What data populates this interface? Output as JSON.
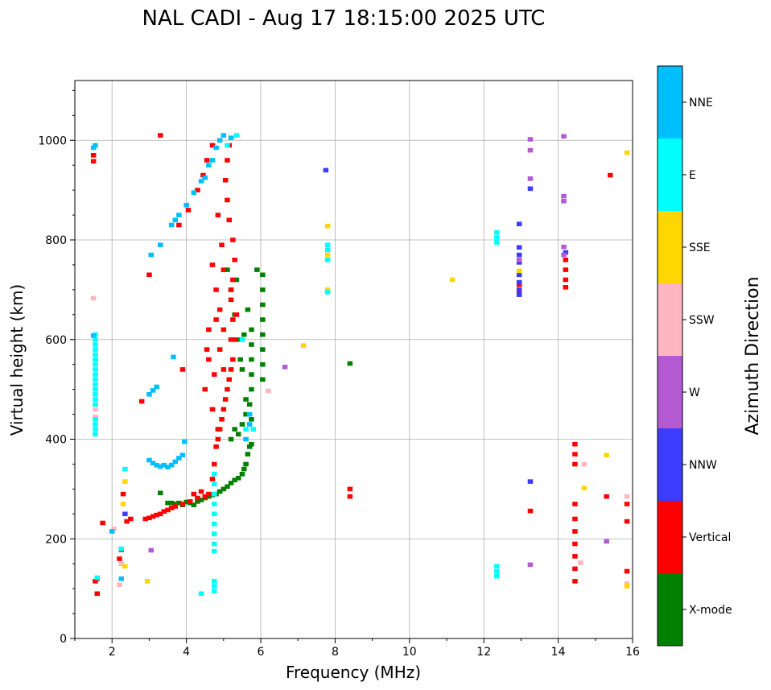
{
  "chart_data": {
    "type": "scatter",
    "title": "NAL CADI - Aug 17 18:15:00 2025 UTC",
    "xlabel": "Frequency (MHz)",
    "ylabel": "Virtual height (km)",
    "xlim": [
      1,
      16
    ],
    "ylim": [
      0,
      1120
    ],
    "xticks": [
      2,
      4,
      6,
      8,
      10,
      12,
      14,
      16
    ],
    "yticks": [
      0,
      200,
      400,
      600,
      800,
      1000
    ],
    "grid": true,
    "colorbar": {
      "label": "Azimuth Direction",
      "categories": [
        {
          "name": "X-mode",
          "color": "#008000"
        },
        {
          "name": "Vertical",
          "color": "#ff0000"
        },
        {
          "name": "NNW",
          "color": "#3c3cff"
        },
        {
          "name": "W",
          "color": "#b45ad2"
        },
        {
          "name": "SSW",
          "color": "#ffb6c1"
        },
        {
          "name": "SSE",
          "color": "#ffd700"
        },
        {
          "name": "E",
          "color": "#00ffff"
        },
        {
          "name": "NNE",
          "color": "#00bfff"
        }
      ]
    },
    "series": [
      {
        "name": "X-mode",
        "points": [
          [
            3.5,
            272
          ],
          [
            3.6,
            272
          ],
          [
            3.7,
            270
          ],
          [
            3.8,
            272
          ],
          [
            3.9,
            268
          ],
          [
            4.0,
            274
          ],
          [
            4.1,
            272
          ],
          [
            4.2,
            268
          ],
          [
            4.3,
            275
          ],
          [
            4.4,
            278
          ],
          [
            4.5,
            282
          ],
          [
            4.6,
            285
          ],
          [
            4.7,
            288
          ],
          [
            4.8,
            290
          ],
          [
            4.9,
            295
          ],
          [
            5.0,
            300
          ],
          [
            5.1,
            305
          ],
          [
            5.2,
            312
          ],
          [
            5.3,
            318
          ],
          [
            5.4,
            322
          ],
          [
            5.5,
            330
          ],
          [
            5.6,
            350
          ],
          [
            5.65,
            370
          ],
          [
            5.7,
            385
          ],
          [
            5.75,
            390
          ],
          [
            5.55,
            340
          ],
          [
            5.2,
            400
          ],
          [
            5.3,
            420
          ],
          [
            5.4,
            410
          ],
          [
            5.5,
            430
          ],
          [
            5.6,
            450
          ],
          [
            5.7,
            470
          ],
          [
            5.75,
            440
          ],
          [
            5.75,
            500
          ],
          [
            5.75,
            530
          ],
          [
            5.75,
            560
          ],
          [
            5.75,
            590
          ],
          [
            5.75,
            620
          ],
          [
            5.6,
            480
          ],
          [
            5.5,
            540
          ],
          [
            5.4,
            600
          ],
          [
            5.3,
            650
          ],
          [
            5.2,
            700
          ],
          [
            5.1,
            740
          ],
          [
            6.05,
            730
          ],
          [
            6.05,
            700
          ],
          [
            6.05,
            670
          ],
          [
            6.05,
            640
          ],
          [
            6.05,
            610
          ],
          [
            6.05,
            580
          ],
          [
            6.05,
            550
          ],
          [
            6.05,
            520
          ],
          [
            8.4,
            552
          ],
          [
            3.3,
            292
          ],
          [
            5.45,
            560
          ],
          [
            5.55,
            610
          ],
          [
            5.65,
            660
          ],
          [
            5.35,
            720
          ],
          [
            5.9,
            740
          ]
        ]
      },
      {
        "name": "Vertical",
        "points": [
          [
            2.9,
            240
          ],
          [
            3.0,
            242
          ],
          [
            3.1,
            245
          ],
          [
            3.2,
            248
          ],
          [
            3.3,
            250
          ],
          [
            3.4,
            255
          ],
          [
            3.5,
            258
          ],
          [
            3.6,
            262
          ],
          [
            3.9,
            270
          ],
          [
            4.1,
            275
          ],
          [
            4.3,
            282
          ],
          [
            4.5,
            285
          ],
          [
            4.6,
            290
          ],
          [
            4.7,
            320
          ],
          [
            4.75,
            350
          ],
          [
            4.8,
            385
          ],
          [
            4.85,
            400
          ],
          [
            4.9,
            420
          ],
          [
            4.95,
            440
          ],
          [
            5.0,
            460
          ],
          [
            5.05,
            480
          ],
          [
            5.1,
            500
          ],
          [
            5.15,
            520
          ],
          [
            5.2,
            540
          ],
          [
            5.25,
            560
          ],
          [
            5.2,
            600
          ],
          [
            5.25,
            640
          ],
          [
            5.2,
            680
          ],
          [
            5.25,
            720
          ],
          [
            5.3,
            760
          ],
          [
            5.25,
            800
          ],
          [
            5.15,
            840
          ],
          [
            5.1,
            880
          ],
          [
            5.05,
            920
          ],
          [
            5.1,
            960
          ],
          [
            5.15,
            990
          ],
          [
            4.8,
            640
          ],
          [
            4.6,
            620
          ],
          [
            4.55,
            580
          ],
          [
            4.6,
            560
          ],
          [
            4.75,
            530
          ],
          [
            4.5,
            500
          ],
          [
            4.7,
            460
          ],
          [
            4.85,
            420
          ],
          [
            4.3,
            900
          ],
          [
            4.45,
            930
          ],
          [
            4.55,
            960
          ],
          [
            4.7,
            990
          ],
          [
            4.05,
            860
          ],
          [
            3.8,
            830
          ],
          [
            4.7,
            750
          ],
          [
            4.8,
            700
          ],
          [
            4.9,
            660
          ],
          [
            5.0,
            620
          ],
          [
            4.9,
            580
          ],
          [
            5.0,
            540
          ],
          [
            5.3,
            600
          ],
          [
            5.35,
            650
          ],
          [
            5.2,
            700
          ],
          [
            5.0,
            740
          ],
          [
            4.95,
            790
          ],
          [
            4.85,
            850
          ],
          [
            3.9,
            540
          ],
          [
            2.8,
            476
          ],
          [
            3.0,
            730
          ],
          [
            3.3,
            1010
          ],
          [
            2.4,
            235
          ],
          [
            2.25,
            178
          ],
          [
            2.2,
            160
          ],
          [
            1.55,
            115
          ],
          [
            1.6,
            120
          ],
          [
            1.75,
            232
          ],
          [
            1.5,
            970
          ],
          [
            1.5,
            958
          ],
          [
            1.6,
            90
          ],
          [
            8.4,
            300
          ],
          [
            8.4,
            285
          ],
          [
            14.2,
            760
          ],
          [
            14.2,
            740
          ],
          [
            14.2,
            720
          ],
          [
            14.2,
            705
          ],
          [
            14.45,
            390
          ],
          [
            14.45,
            370
          ],
          [
            14.45,
            350
          ],
          [
            14.45,
            270
          ],
          [
            14.45,
            240
          ],
          [
            14.45,
            215
          ],
          [
            14.45,
            190
          ],
          [
            14.45,
            165
          ],
          [
            14.45,
            140
          ],
          [
            14.45,
            115
          ],
          [
            15.4,
            930
          ],
          [
            15.3,
            285
          ],
          [
            15.85,
            270
          ],
          [
            15.85,
            235
          ],
          [
            15.85,
            135
          ],
          [
            12.95,
            710
          ],
          [
            12.95,
            695
          ],
          [
            13.25,
            256
          ],
          [
            2.3,
            290
          ],
          [
            2.5,
            240
          ],
          [
            3.7,
            265
          ],
          [
            4.2,
            290
          ],
          [
            4.4,
            295
          ]
        ]
      },
      {
        "name": "NNW",
        "points": [
          [
            7.75,
            940
          ],
          [
            12.95,
            785
          ],
          [
            12.95,
            770
          ],
          [
            12.95,
            755
          ],
          [
            12.95,
            730
          ],
          [
            12.95,
            715
          ],
          [
            12.95,
            700
          ],
          [
            12.95,
            690
          ],
          [
            12.95,
            832
          ],
          [
            13.25,
            903
          ],
          [
            13.25,
            315
          ],
          [
            14.2,
            775
          ],
          [
            2.35,
            250
          ]
        ]
      },
      {
        "name": "W",
        "points": [
          [
            13.25,
            1002
          ],
          [
            13.25,
            980
          ],
          [
            13.25,
            923
          ],
          [
            13.25,
            148
          ],
          [
            14.15,
            1008
          ],
          [
            14.15,
            888
          ],
          [
            14.15,
            878
          ],
          [
            14.15,
            786
          ],
          [
            14.15,
            770
          ],
          [
            15.3,
            195
          ],
          [
            6.65,
            545
          ],
          [
            3.05,
            177
          ],
          [
            12.95,
            760
          ]
        ]
      },
      {
        "name": "SSW",
        "points": [
          [
            1.5,
            683
          ],
          [
            1.55,
            460
          ],
          [
            1.55,
            445
          ],
          [
            2.05,
            220
          ],
          [
            2.2,
            108
          ],
          [
            6.2,
            497
          ],
          [
            14.6,
            152
          ],
          [
            14.7,
            350
          ],
          [
            15.85,
            285
          ],
          [
            15.85,
            110
          ],
          [
            2.25,
            150
          ]
        ]
      },
      {
        "name": "SSE",
        "points": [
          [
            7.8,
            828
          ],
          [
            7.8,
            770
          ],
          [
            7.8,
            700
          ],
          [
            7.15,
            588
          ],
          [
            11.15,
            720
          ],
          [
            12.95,
            738
          ],
          [
            14.7,
            302
          ],
          [
            15.3,
            368
          ],
          [
            15.85,
            975
          ],
          [
            15.85,
            105
          ],
          [
            2.35,
            315
          ],
          [
            2.3,
            270
          ],
          [
            2.35,
            145
          ],
          [
            2.95,
            115
          ]
        ]
      },
      {
        "name": "E",
        "points": [
          [
            1.55,
            610
          ],
          [
            1.55,
            600
          ],
          [
            1.55,
            590
          ],
          [
            1.55,
            580
          ],
          [
            1.55,
            570
          ],
          [
            1.55,
            560
          ],
          [
            1.55,
            550
          ],
          [
            1.55,
            540
          ],
          [
            1.55,
            530
          ],
          [
            1.55,
            520
          ],
          [
            1.55,
            510
          ],
          [
            1.55,
            500
          ],
          [
            1.55,
            490
          ],
          [
            1.55,
            480
          ],
          [
            1.55,
            470
          ],
          [
            1.55,
            440
          ],
          [
            1.55,
            430
          ],
          [
            1.55,
            420
          ],
          [
            1.55,
            410
          ],
          [
            4.75,
            330
          ],
          [
            4.75,
            310
          ],
          [
            4.75,
            290
          ],
          [
            4.75,
            270
          ],
          [
            4.75,
            250
          ],
          [
            4.75,
            230
          ],
          [
            4.75,
            210
          ],
          [
            4.75,
            190
          ],
          [
            4.75,
            175
          ],
          [
            4.75,
            115
          ],
          [
            4.75,
            105
          ],
          [
            4.75,
            95
          ],
          [
            4.4,
            90
          ],
          [
            1.6,
            122
          ],
          [
            12.35,
            815
          ],
          [
            12.35,
            805
          ],
          [
            12.35,
            795
          ],
          [
            12.35,
            145
          ],
          [
            12.35,
            135
          ],
          [
            12.35,
            125
          ],
          [
            7.8,
            790
          ],
          [
            7.8,
            780
          ],
          [
            7.8,
            760
          ],
          [
            7.8,
            695
          ],
          [
            5.8,
            420
          ],
          [
            5.6,
            420
          ],
          [
            5.5,
            600
          ],
          [
            5.1,
            990
          ],
          [
            5.35,
            1010
          ],
          [
            2.35,
            340
          ],
          [
            2.25,
            180
          ]
        ]
      },
      {
        "name": "NNE",
        "points": [
          [
            3.0,
            358
          ],
          [
            3.1,
            352
          ],
          [
            3.2,
            348
          ],
          [
            3.3,
            345
          ],
          [
            3.4,
            348
          ],
          [
            3.5,
            344
          ],
          [
            3.6,
            348
          ],
          [
            3.7,
            355
          ],
          [
            3.8,
            362
          ],
          [
            3.9,
            368
          ],
          [
            3.95,
            395
          ],
          [
            3.0,
            490
          ],
          [
            3.1,
            498
          ],
          [
            3.2,
            505
          ],
          [
            3.65,
            565
          ],
          [
            3.6,
            830
          ],
          [
            3.7,
            840
          ],
          [
            3.8,
            850
          ],
          [
            4.0,
            870
          ],
          [
            4.2,
            895
          ],
          [
            4.4,
            918
          ],
          [
            4.5,
            925
          ],
          [
            4.6,
            950
          ],
          [
            4.7,
            960
          ],
          [
            4.8,
            985
          ],
          [
            4.9,
            1000
          ],
          [
            5.0,
            1010
          ],
          [
            5.2,
            1005
          ],
          [
            1.5,
            985
          ],
          [
            1.55,
            990
          ],
          [
            1.5,
            608
          ],
          [
            3.05,
            770
          ],
          [
            3.3,
            790
          ],
          [
            5.7,
            450
          ],
          [
            5.7,
            430
          ],
          [
            5.6,
            400
          ],
          [
            2.25,
            120
          ],
          [
            2.0,
            215
          ]
        ]
      }
    ]
  }
}
